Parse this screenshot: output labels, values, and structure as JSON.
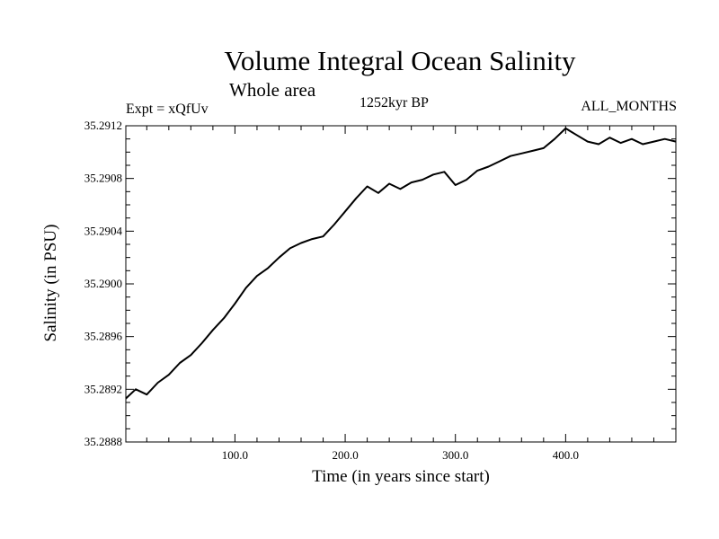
{
  "chart_data": {
    "type": "line",
    "title": "Volume Integral Ocean Salinity",
    "subtitle": "Whole area",
    "annotations": {
      "left": "Expt = xQfUv",
      "center": "1252kyr BP",
      "right": "ALL_MONTHS"
    },
    "xlabel": "Time (in years since start)",
    "ylabel": "Salinity (in PSU)",
    "xlim": [
      1,
      500
    ],
    "ylim": [
      35.2888,
      35.2912
    ],
    "x_ticks": [
      100,
      200,
      300,
      400
    ],
    "x_tick_labels": [
      "100.0",
      "200.0",
      "300.0",
      "400.0"
    ],
    "y_ticks": [
      35.2888,
      35.2892,
      35.2896,
      35.29,
      35.2904,
      35.2908,
      35.2912
    ],
    "y_tick_labels": [
      "35.2888",
      "35.2892",
      "35.2896",
      "35.2900",
      "35.2904",
      "35.2908",
      "35.2912"
    ],
    "grid": false,
    "series": [
      {
        "name": "salinity",
        "x": [
          1,
          10,
          20,
          30,
          40,
          50,
          60,
          70,
          80,
          90,
          100,
          110,
          120,
          130,
          140,
          150,
          160,
          170,
          180,
          190,
          200,
          210,
          220,
          230,
          240,
          250,
          260,
          270,
          280,
          290,
          300,
          310,
          320,
          330,
          340,
          350,
          360,
          370,
          380,
          390,
          400,
          410,
          420,
          430,
          440,
          450,
          460,
          470,
          480,
          490,
          500
        ],
        "values": [
          35.28913,
          35.2892,
          35.28916,
          35.28925,
          35.28931,
          35.2894,
          35.28946,
          35.28955,
          35.28965,
          35.28974,
          35.28985,
          35.28997,
          35.29006,
          35.29012,
          35.2902,
          35.29027,
          35.29031,
          35.29034,
          35.29036,
          35.29045,
          35.29055,
          35.29065,
          35.29074,
          35.29069,
          35.29076,
          35.29072,
          35.29077,
          35.29079,
          35.29083,
          35.29085,
          35.29075,
          35.29079,
          35.29086,
          35.29089,
          35.29093,
          35.29097,
          35.29099,
          35.29101,
          35.29103,
          35.2911,
          35.29118,
          35.29113,
          35.29108,
          35.29106,
          35.29111,
          35.29107,
          35.2911,
          35.29106,
          35.29108,
          35.2911,
          35.29108
        ]
      }
    ]
  }
}
